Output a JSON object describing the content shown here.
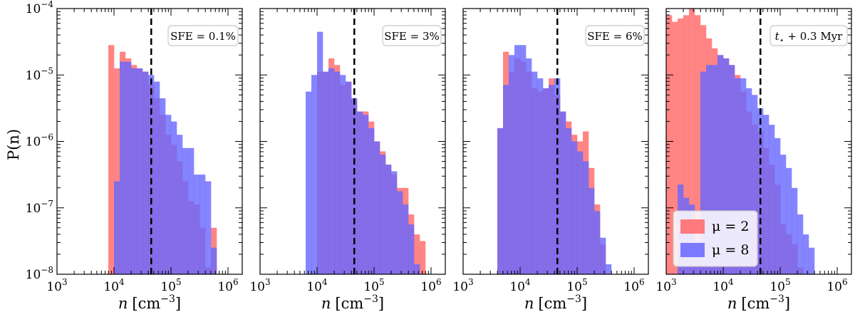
{
  "figure": {
    "ylabel": "P(n)",
    "colors": {
      "mu2": "#ff6666",
      "mu8": "#6666ff",
      "threshold_line": "#000000"
    }
  },
  "chart_data": {
    "type": "bar",
    "xlim_log10": [
      3,
      6.25
    ],
    "ylim_log10": [
      -8,
      -4
    ],
    "bin_width_log10": 0.1,
    "threshold_n": 45000,
    "x_ticks": [
      {
        "log": 3,
        "label_base": "10",
        "label_exp": "3"
      },
      {
        "log": 4,
        "label_base": "10",
        "label_exp": "4"
      },
      {
        "log": 5,
        "label_base": "10",
        "label_exp": "5"
      },
      {
        "log": 6,
        "label_base": "10",
        "label_exp": "6"
      }
    ],
    "y_ticks": [
      {
        "log": -8,
        "label_base": "10",
        "label_exp": "−8"
      },
      {
        "log": -7,
        "label_base": "10",
        "label_exp": "−7"
      },
      {
        "log": -6,
        "label_base": "10",
        "label_exp": "−6"
      },
      {
        "log": -5,
        "label_base": "10",
        "label_exp": "−5"
      },
      {
        "log": -4,
        "label_base": "10",
        "label_exp": "−4"
      }
    ],
    "legend": [
      {
        "key": "mu2",
        "label": "μ = 2"
      },
      {
        "key": "mu8",
        "label": "μ = 8"
      }
    ],
    "panels": [
      {
        "annotation": "SFE = 0.1%",
        "xlabel_var": "n",
        "xlabel_unit": "[cm",
        "xlabel_exp": "−3",
        "xlabel_close": "]",
        "series": [
          {
            "key": "mu2",
            "start_log": 3.9,
            "log10_values": [
              -4.55,
              -4.9,
              -4.65,
              -4.75,
              -4.85,
              -4.9,
              -4.95,
              -5.15,
              -5.35,
              -5.6,
              -5.9,
              -6.05,
              -6.3,
              -6.6,
              -6.9,
              -6.95,
              -7.3,
              -7.9,
              -7.3
            ]
          },
          {
            "key": "mu8",
            "start_log": 4.0,
            "log10_values": [
              -6.6,
              -4.8,
              -4.8,
              -4.9,
              -4.9,
              -4.95,
              -5.0,
              -5.1,
              -5.35,
              -5.6,
              -5.7,
              -5.9,
              -6.1,
              -6.1,
              -6.5,
              -6.5,
              -6.6,
              -7.6
            ]
          }
        ]
      },
      {
        "annotation": "SFE = 3%",
        "xlabel_var": "n",
        "xlabel_unit": "[cm",
        "xlabel_exp": "−3",
        "xlabel_close": "]",
        "series": [
          {
            "key": "mu2",
            "start_log": 4.0,
            "log10_values": [
              -4.95,
              -4.95,
              -4.75,
              -4.85,
              -5.15,
              -5.1,
              -5.35,
              -5.55,
              -5.55,
              -5.7,
              -6.0,
              -6.15,
              -6.35,
              -6.5,
              -6.7,
              -6.7,
              -7.1,
              -7.4,
              -7.5
            ]
          },
          {
            "key": "mu8",
            "start_log": 3.8,
            "log10_values": [
              -5.25,
              -5.0,
              -4.35,
              -4.95,
              -4.9,
              -4.95,
              -5.0,
              -5.1,
              -5.35,
              -5.55,
              -5.6,
              -5.8,
              -6.0,
              -6.2,
              -6.35,
              -6.45,
              -6.75,
              -6.95,
              -7.25,
              -7.85
            ]
          }
        ]
      },
      {
        "annotation": "SFE = 6%",
        "xlabel_var": "n",
        "xlabel_unit": "[cm",
        "xlabel_exp": "−3",
        "xlabel_close": "]",
        "series": [
          {
            "key": "mu2",
            "start_log": 3.6,
            "log10_values": [
              -5.8,
              -4.65,
              -4.95,
              -4.75,
              -4.8,
              -4.95,
              -5.2,
              -5.25,
              -5.2,
              -5.05,
              -5.3,
              -5.55,
              -5.7,
              -5.9,
              -6.0,
              -5.85,
              -6.4,
              -6.95,
              -7.55
            ]
          },
          {
            "key": "mu8",
            "start_log": 3.6,
            "log10_values": [
              -5.8,
              -5.15,
              -4.7,
              -4.55,
              -4.55,
              -4.75,
              -4.95,
              -5.05,
              -5.2,
              -5.15,
              -5.05,
              -5.55,
              -5.8,
              -6.0,
              -6.15,
              -6.3,
              -6.7,
              -7.05,
              -7.45,
              -7.85,
              -8.0
            ]
          }
        ]
      },
      {
        "annotation": "t⋆ + 0.3 Myr",
        "annotation_parts": {
          "var": "t",
          "sub": "⋆",
          "rest": " + 0.3 Myr"
        },
        "xlabel_var": "n",
        "xlabel_unit": "[cm",
        "xlabel_exp": "−3",
        "xlabel_close": "]",
        "series": [
          {
            "key": "mu2",
            "start_log": 3.0,
            "log10_values": [
              -4.1,
              -4.2,
              -4.15,
              -4.1,
              -4.0,
              -4.1,
              -4.25,
              -4.45,
              -4.6,
              -4.7,
              -4.75,
              -4.85,
              -5.0,
              -5.25,
              -5.55,
              -5.75,
              -5.85,
              -6.1,
              -6.35,
              -6.65,
              -7.25,
              -7.4,
              -7.55,
              -7.9
            ]
          },
          {
            "key": "mu8",
            "start_log": 3.2,
            "log10_values": [
              -6.65,
              -6.85,
              -6.95,
              -7.5,
              -4.95,
              -4.85,
              -4.85,
              -4.7,
              -4.75,
              -4.85,
              -5.05,
              -5.05,
              -5.2,
              -5.3,
              -5.5,
              -5.6,
              -5.75,
              -5.95,
              -6.2,
              -6.4,
              -6.7,
              -7.1,
              -7.4,
              -7.6
            ]
          }
        ]
      }
    ]
  }
}
